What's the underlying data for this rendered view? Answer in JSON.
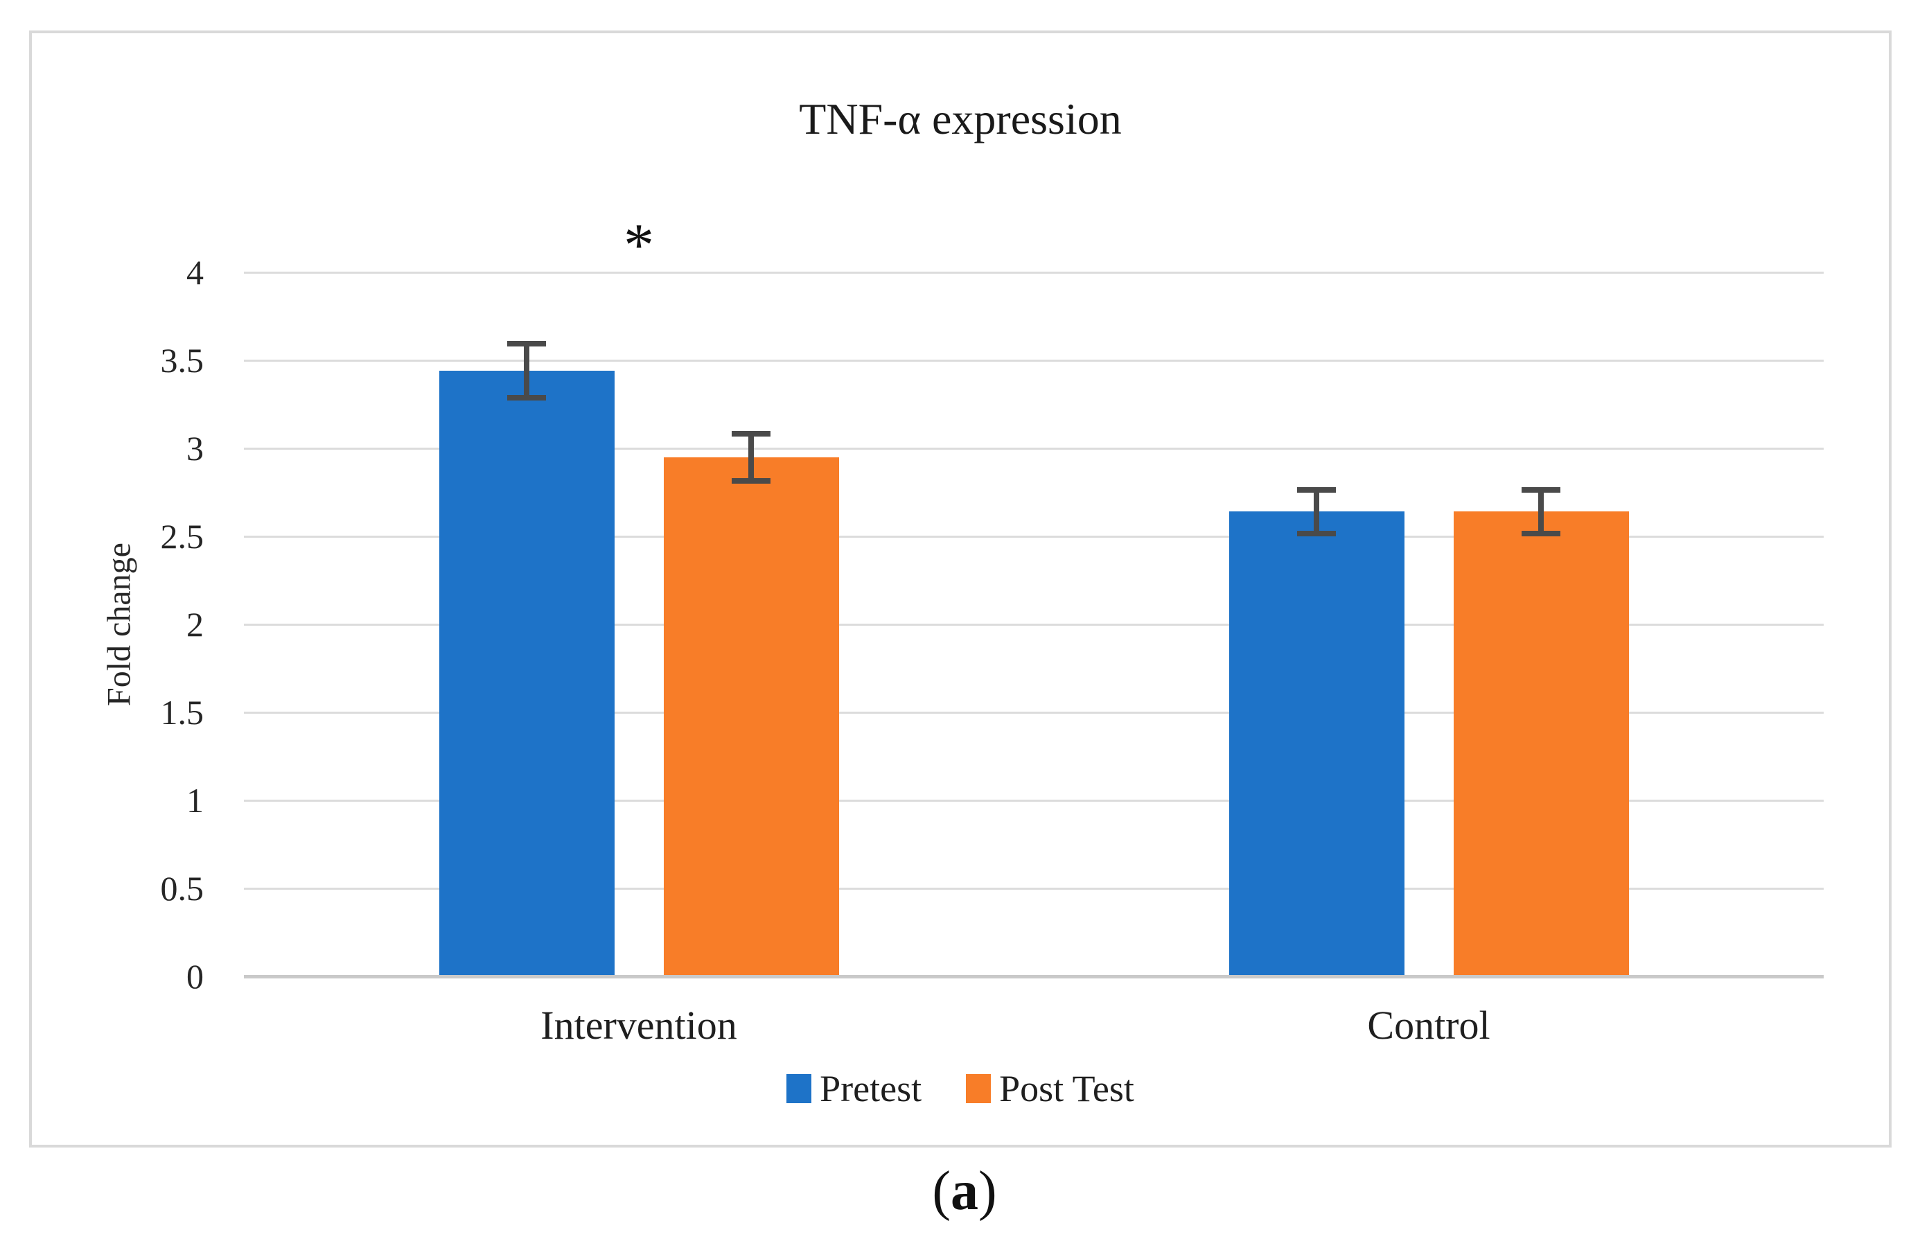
{
  "figure": {
    "caption_open": "(",
    "caption_letter": "a",
    "caption_close": ")"
  },
  "chart_data": {
    "type": "bar",
    "title": "TNF-α expression",
    "xlabel": "",
    "ylabel": "Fold change",
    "categories": [
      "Intervention",
      "Control"
    ],
    "series": [
      {
        "name": "Pretest",
        "color": "#1e73c8",
        "values": [
          3.44,
          2.64
        ],
        "errors": [
          0.17,
          0.14
        ]
      },
      {
        "name": "Post Test",
        "color": "#f87d28",
        "values": [
          2.95,
          2.64
        ],
        "errors": [
          0.15,
          0.14
        ]
      }
    ],
    "ylim": [
      0,
      4
    ],
    "ytick_step": 0.5,
    "grid": true,
    "legend_position": "bottom",
    "error_bar_color": "#4a4a4a",
    "gridline_color": "#dcdcdc",
    "annotations": [
      {
        "text": "*",
        "category": "Intervention",
        "y": 4.15
      }
    ]
  }
}
